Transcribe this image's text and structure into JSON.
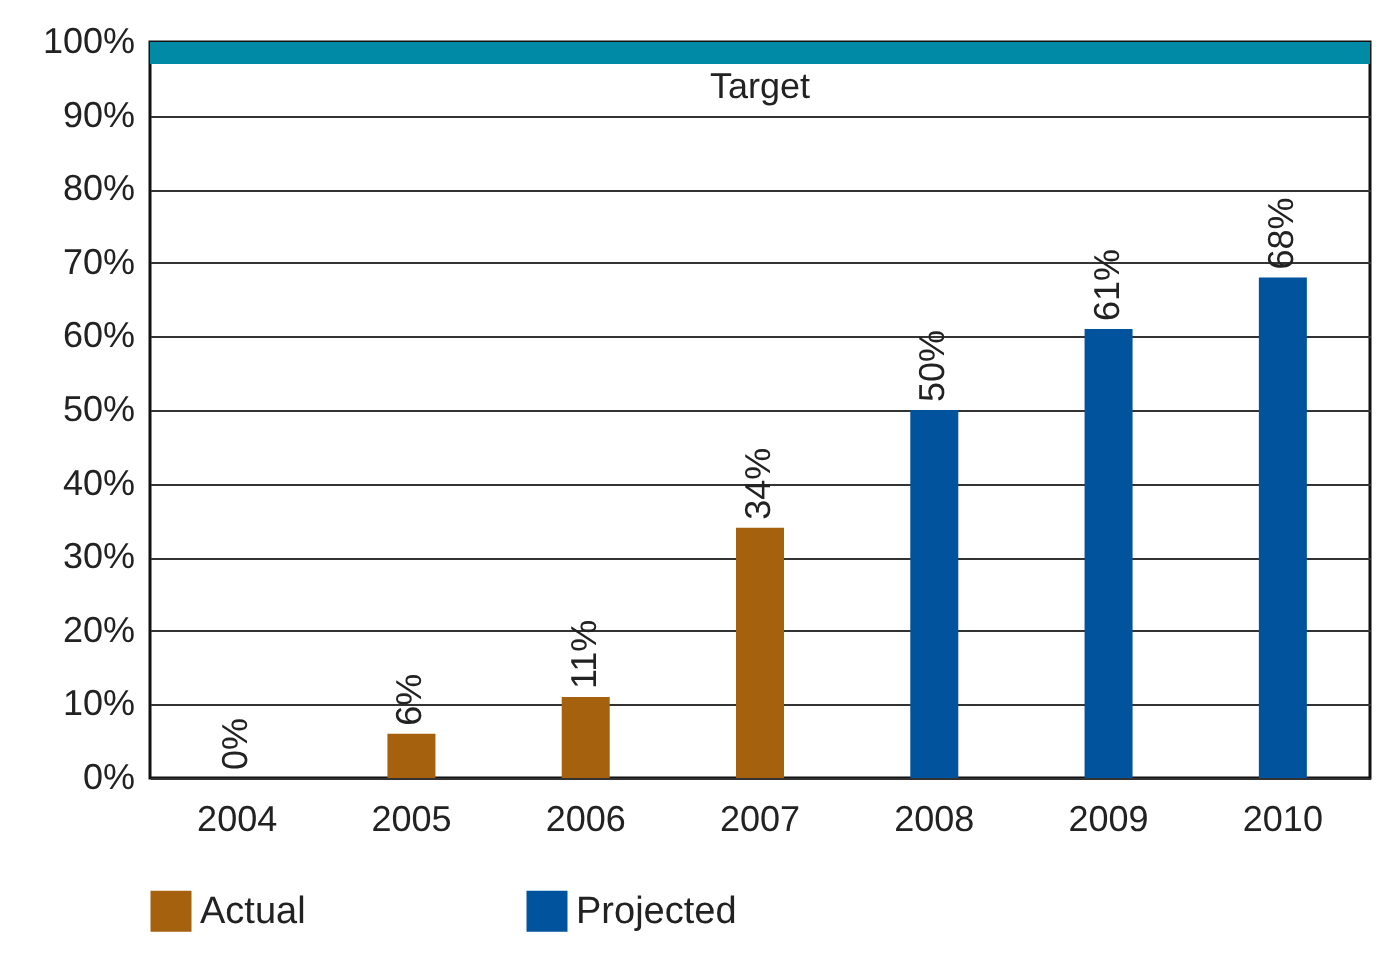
{
  "chart_data": {
    "type": "bar",
    "categories": [
      "2004",
      "2005",
      "2006",
      "2007",
      "2008",
      "2009",
      "2010"
    ],
    "series": [
      {
        "name": "Actual",
        "color": "#a5610d",
        "values": [
          0,
          6,
          11,
          34,
          null,
          null,
          null
        ],
        "value_labels": [
          "0%",
          "6%",
          "11%",
          "34%",
          null,
          null,
          null
        ]
      },
      {
        "name": "Projected",
        "color": "#02539e",
        "values": [
          null,
          null,
          null,
          null,
          50,
          61,
          68
        ],
        "value_labels": [
          null,
          null,
          null,
          null,
          "50%",
          "61%",
          "68%"
        ]
      }
    ],
    "ylim": [
      0,
      100
    ],
    "yticks": [
      {
        "value": 0,
        "label": "0%"
      },
      {
        "value": 10,
        "label": "10%"
      },
      {
        "value": 20,
        "label": "20%"
      },
      {
        "value": 30,
        "label": "30%"
      },
      {
        "value": 40,
        "label": "40%"
      },
      {
        "value": 50,
        "label": "50%"
      },
      {
        "value": 60,
        "label": "60%"
      },
      {
        "value": 70,
        "label": "70%"
      },
      {
        "value": 80,
        "label": "80%"
      },
      {
        "value": 90,
        "label": "90%"
      },
      {
        "value": 100,
        "label": "100%"
      }
    ],
    "bands": [
      {
        "axis": "y",
        "from": 97,
        "to": 100,
        "label": "Target",
        "color": "#008aa6"
      }
    ],
    "grid": "y",
    "legend": "bottom"
  }
}
